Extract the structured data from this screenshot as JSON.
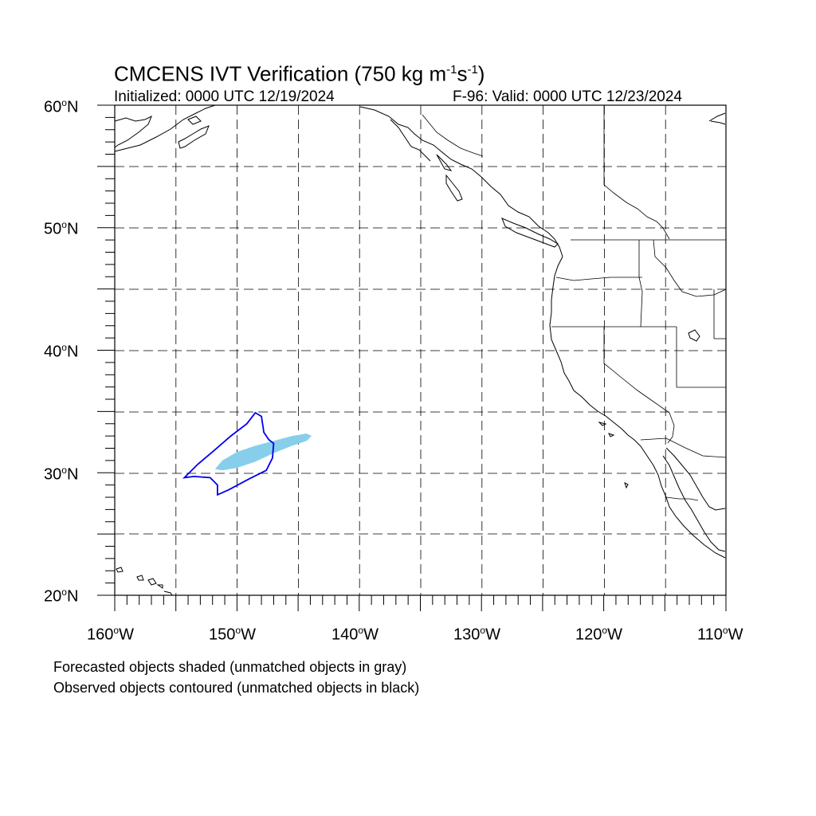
{
  "title": {
    "main": "CMCENS IVT Verification (750 kg m",
    "exp1": "-1",
    "mid": "s",
    "exp2": "-1",
    "close": ")"
  },
  "subtitle_left": "Initialized: 0000 UTC 12/19/2024",
  "subtitle_right": "F-96: Valid: 0000 UTC 12/23/2024",
  "lat_labels": [
    {
      "text": "60",
      "deg": "o",
      "hemi": "N"
    },
    {
      "text": "50",
      "deg": "o",
      "hemi": "N"
    },
    {
      "text": "40",
      "deg": "o",
      "hemi": "N"
    },
    {
      "text": "30",
      "deg": "o",
      "hemi": "N"
    },
    {
      "text": "20",
      "deg": "o",
      "hemi": "N"
    }
  ],
  "lon_labels": [
    {
      "text": "160",
      "deg": "o",
      "hemi": "W"
    },
    {
      "text": "150",
      "deg": "o",
      "hemi": "W"
    },
    {
      "text": "140",
      "deg": "o",
      "hemi": "W"
    },
    {
      "text": "130",
      "deg": "o",
      "hemi": "W"
    },
    {
      "text": "120",
      "deg": "o",
      "hemi": "W"
    },
    {
      "text": "110",
      "deg": "o",
      "hemi": "W"
    }
  ],
  "footnote_1": "Forecasted objects shaded (unmatched objects in gray)",
  "footnote_2": "Observed objects contoured (unmatched objects in black)",
  "map_extent": {
    "lon_min": -160,
    "lon_max": -110,
    "lat_min": 20,
    "lat_max": 60
  },
  "colors": {
    "forecast_fill": "#87ceeb",
    "observed_contour": "#0000ee",
    "coastline": "#000000",
    "grid": "#000000"
  },
  "forecast_object": [
    [
      -151.8,
      30.3
    ],
    [
      -151.2,
      31.0
    ],
    [
      -150.0,
      31.7
    ],
    [
      -148.5,
      32.2
    ],
    [
      -147.0,
      32.6
    ],
    [
      -145.5,
      33.0
    ],
    [
      -144.3,
      33.2
    ],
    [
      -143.9,
      33.0
    ],
    [
      -144.3,
      32.6
    ],
    [
      -145.5,
      32.2
    ],
    [
      -147.0,
      31.6
    ],
    [
      -148.5,
      30.9
    ],
    [
      -150.0,
      30.4
    ],
    [
      -151.2,
      30.2
    ]
  ],
  "observed_object": [
    [
      -154.3,
      29.6
    ],
    [
      -153.2,
      30.7
    ],
    [
      -152.0,
      31.7
    ],
    [
      -150.5,
      33.0
    ],
    [
      -149.2,
      34.0
    ],
    [
      -148.5,
      34.9
    ],
    [
      -148.0,
      34.6
    ],
    [
      -147.8,
      33.3
    ],
    [
      -147.4,
      32.7
    ],
    [
      -147.0,
      32.4
    ],
    [
      -147.1,
      31.2
    ],
    [
      -147.6,
      30.2
    ],
    [
      -149.0,
      29.5
    ],
    [
      -150.7,
      28.6
    ],
    [
      -151.6,
      28.2
    ],
    [
      -151.6,
      29.0
    ],
    [
      -152.2,
      29.6
    ],
    [
      -153.5,
      29.7
    ]
  ]
}
